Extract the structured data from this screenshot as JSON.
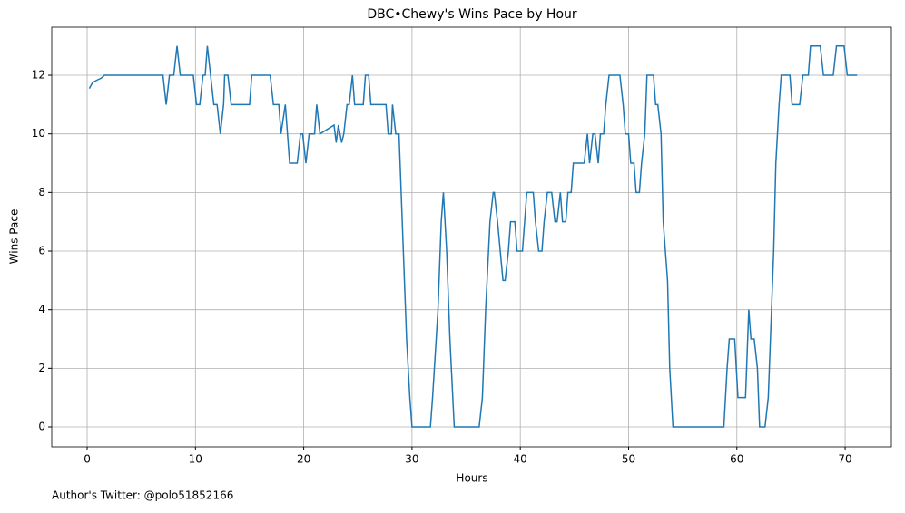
{
  "chart_data": {
    "type": "line",
    "title": "DBC•Chewy's Wins Pace by Hour",
    "xlabel": "Hours",
    "ylabel": "Wins Pace",
    "footnote": "Author's Twitter: @polo51852166",
    "grid": true,
    "xlim": [
      -3.27,
      74.27
    ],
    "ylim": [
      -0.68,
      13.64
    ],
    "xticks": [
      0,
      10,
      20,
      30,
      40,
      50,
      60,
      70
    ],
    "yticks": [
      0,
      2,
      4,
      6,
      8,
      10,
      12
    ],
    "series": [
      {
        "color": "#1f77b4",
        "x": [
          0.2,
          0.5,
          1,
          1.3,
          1.6,
          7,
          7.3,
          7.6,
          8,
          8.3,
          8.6,
          9.8,
          10.1,
          10.4,
          10.7,
          10.9,
          11.1,
          11.4,
          11.7,
          12,
          12.3,
          12.6,
          12.7,
          13,
          13.3,
          15,
          15.2,
          16.9,
          17.2,
          17.7,
          17.9,
          18.3,
          18.7,
          19.4,
          19.7,
          19.9,
          20.2,
          20.5,
          21,
          21.2,
          21.5,
          22.8,
          23,
          23.2,
          23.5,
          23.7,
          24,
          24.2,
          24.5,
          24.7,
          25.5,
          25.7,
          26,
          26.2,
          27.6,
          27.8,
          28.1,
          28.2,
          28.5,
          28.8,
          29,
          29.3,
          29.5,
          29.8,
          30,
          31.7,
          31.9,
          32.4,
          32.7,
          32.9,
          33.2,
          33.5,
          33.9,
          36.2,
          36.5,
          36.8,
          37.2,
          37.5,
          37.6,
          37.9,
          38.4,
          38.6,
          38.9,
          39.1,
          39.5,
          39.7,
          40.2,
          40.4,
          40.6,
          41.2,
          41.4,
          41.7,
          42,
          42.2,
          42.5,
          42.9,
          43.2,
          43.4,
          43.7,
          43.9,
          44.2,
          44.4,
          44.7,
          44.9,
          45.9,
          46.2,
          46.4,
          46.7,
          46.9,
          47.2,
          47.4,
          47.7,
          47.9,
          48.2,
          49.2,
          49.5,
          49.7,
          50,
          50.2,
          50.5,
          50.7,
          51,
          51.2,
          51.5,
          51.7,
          52.3,
          52.5,
          52.7,
          53,
          53.2,
          53.6,
          53.8,
          54.1,
          58.8,
          59.1,
          59.3,
          59.8,
          60.1,
          60.8,
          60.9,
          61.1,
          61.3,
          61.6,
          61.9,
          62.1,
          62.6,
          62.9,
          63.1,
          63.4,
          63.6,
          63.9,
          64.1,
          64.9,
          65.1,
          65.8,
          66.1,
          66.6,
          66.8,
          67.7,
          68,
          68.9,
          69.2,
          69.9,
          70.2,
          71.1
        ],
        "values": [
          11.55,
          11.75,
          11.85,
          11.9,
          12,
          12,
          11,
          12,
          12,
          13,
          12,
          12,
          11,
          11,
          12,
          12,
          13,
          12,
          11,
          11,
          10,
          11,
          12,
          12,
          11,
          11,
          12,
          12,
          11,
          11,
          10,
          11,
          9,
          9,
          10,
          10,
          9,
          10,
          10,
          11,
          10,
          10.3,
          9.7,
          10.3,
          9.7,
          10,
          11,
          11,
          12,
          11,
          11,
          12,
          12,
          11,
          11,
          10,
          10,
          11,
          10,
          10,
          8,
          5,
          3,
          1,
          0,
          0,
          1,
          4,
          7,
          8,
          6,
          3,
          0,
          0,
          1,
          4,
          7,
          8,
          8,
          7,
          5,
          5,
          6,
          7,
          7,
          6,
          6,
          7,
          8,
          8,
          7,
          6,
          6,
          7,
          8,
          8,
          7,
          7,
          8,
          7,
          7,
          8,
          8,
          9,
          9,
          10,
          9,
          10,
          10,
          9,
          10,
          10,
          11,
          12,
          12,
          11,
          10,
          10,
          9,
          9,
          8,
          8,
          9,
          10,
          12,
          12,
          11,
          11,
          10,
          7,
          5,
          2,
          0,
          0,
          2,
          3,
          3,
          1,
          1,
          2,
          4,
          3,
          3,
          2,
          0,
          0,
          1,
          3,
          6,
          9,
          11,
          12,
          12,
          11,
          11,
          12,
          12,
          13,
          13,
          12,
          12,
          13,
          13,
          12,
          12
        ]
      }
    ]
  }
}
